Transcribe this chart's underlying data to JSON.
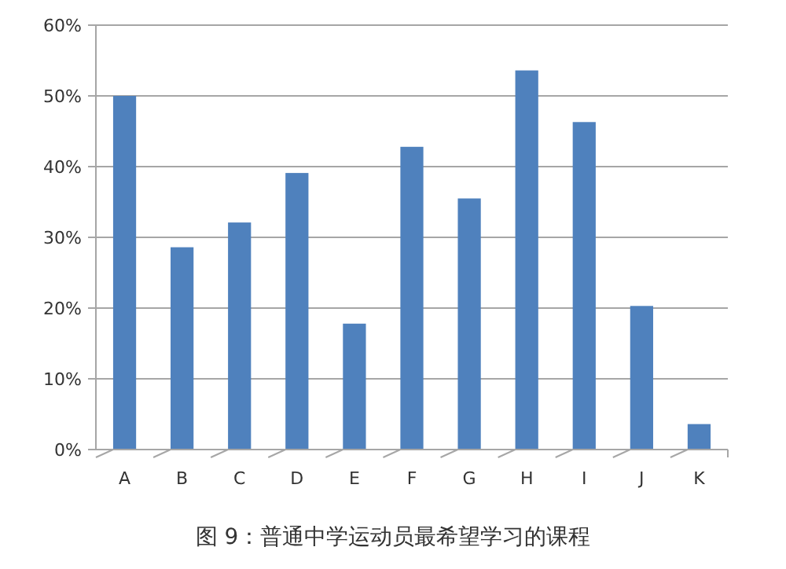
{
  "chart_data": {
    "type": "bar",
    "categories": [
      "A",
      "B",
      "C",
      "D",
      "E",
      "F",
      "G",
      "H",
      "I",
      "J",
      "K"
    ],
    "values": [
      50,
      28.6,
      32.1,
      39.1,
      17.8,
      42.8,
      35.5,
      53.6,
      46.3,
      20.3,
      3.6
    ],
    "color": "#4f81bd",
    "ylim": [
      0,
      60
    ],
    "yticks": [
      {
        "value": 0,
        "label": "0%"
      },
      {
        "value": 10,
        "label": "10%"
      },
      {
        "value": 20,
        "label": "20%"
      },
      {
        "value": 30,
        "label": "30%"
      },
      {
        "value": 40,
        "label": "40%"
      },
      {
        "value": 50,
        "label": "50%"
      },
      {
        "value": 60,
        "label": "60%"
      }
    ],
    "grid": "y",
    "annotations": [
      "图 9：普通中学运动员最希望学习的课程"
    ]
  }
}
